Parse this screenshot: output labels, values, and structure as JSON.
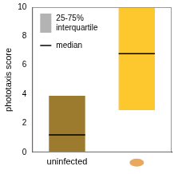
{
  "chart_data": {
    "type": "box",
    "ylabel": "phototaxis score",
    "categories": [
      "uninfected",
      null
    ],
    "colors": [
      "#9c7a2e",
      "#fcc82e"
    ],
    "series": [
      {
        "name": "25-75% interquartile",
        "color": "#b3b3b3",
        "low": [
          0,
          2.9
        ],
        "high": [
          3.9,
          10
        ]
      },
      {
        "name": "median",
        "color": "#000000",
        "values": [
          1.2,
          6.8
        ]
      }
    ],
    "ylim": [
      0,
      10
    ],
    "yticks": [
      0,
      2,
      4,
      6,
      8,
      10
    ],
    "grid": false,
    "legend": "upper left"
  }
}
